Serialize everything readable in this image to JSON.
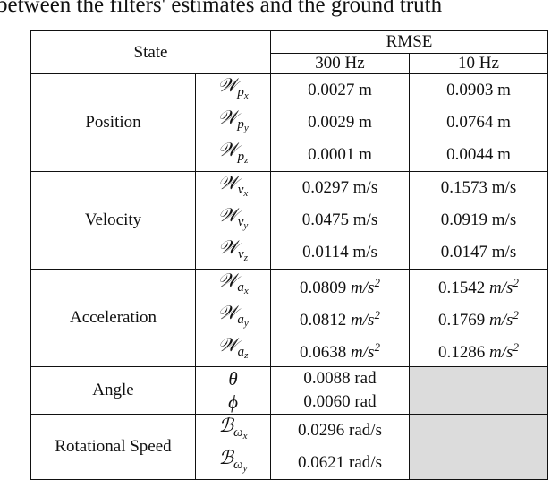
{
  "caption": "between the filters' estimates and the ground truth",
  "header": {
    "state": "State",
    "rmse": "RMSE",
    "col_300": "300 Hz",
    "col_10": "10 Hz"
  },
  "groups": [
    {
      "label": "Position",
      "rows": [
        {
          "sym": "𝒲",
          "sub": "p",
          "subsub": "x",
          "v300": "0.0027 m",
          "v10": "0.0903 m"
        },
        {
          "sym": "𝒲",
          "sub": "p",
          "subsub": "y",
          "v300": "0.0029 m",
          "v10": "0.0764 m"
        },
        {
          "sym": "𝒲",
          "sub": "p",
          "subsub": "z",
          "v300": "0.0001 m",
          "v10": "0.0044 m"
        }
      ]
    },
    {
      "label": "Velocity",
      "rows": [
        {
          "sym": "𝒲",
          "sub": "v",
          "subsub": "x",
          "v300": "0.0297 m/s",
          "v10": "0.1573 m/s"
        },
        {
          "sym": "𝒲",
          "sub": "v",
          "subsub": "y",
          "v300": "0.0475 m/s",
          "v10": "0.0919 m/s"
        },
        {
          "sym": "𝒲",
          "sub": "v",
          "subsub": "z",
          "v300": "0.0114 m/s",
          "v10": "0.0147 m/s"
        }
      ]
    },
    {
      "label": "Acceleration",
      "rows": [
        {
          "sym": "𝒲",
          "sub": "a",
          "subsub": "x",
          "v300": "0.0809",
          "v10": "0.1542",
          "unit": "m/s",
          "exp": "2"
        },
        {
          "sym": "𝒲",
          "sub": "a",
          "subsub": "y",
          "v300": "0.0812",
          "v10": "0.1769",
          "unit": "m/s",
          "exp": "2"
        },
        {
          "sym": "𝒲",
          "sub": "a",
          "subsub": "z",
          "v300": "0.0638",
          "v10": "0.1286",
          "unit": "m/s",
          "exp": "2"
        }
      ]
    },
    {
      "label": "Angle",
      "rows": [
        {
          "sym": "θ",
          "v300": "0.0088 rad"
        },
        {
          "sym": "ϕ",
          "v300": "0.0060 rad"
        }
      ]
    },
    {
      "label": "Rotational Speed",
      "rows": [
        {
          "sym": "ℬ",
          "sub": "ω",
          "subsub": "x",
          "v300": "0.0296 rad/s"
        },
        {
          "sym": "ℬ",
          "sub": "ω",
          "subsub": "y",
          "v300": "0.0621 rad/s"
        }
      ]
    }
  ]
}
